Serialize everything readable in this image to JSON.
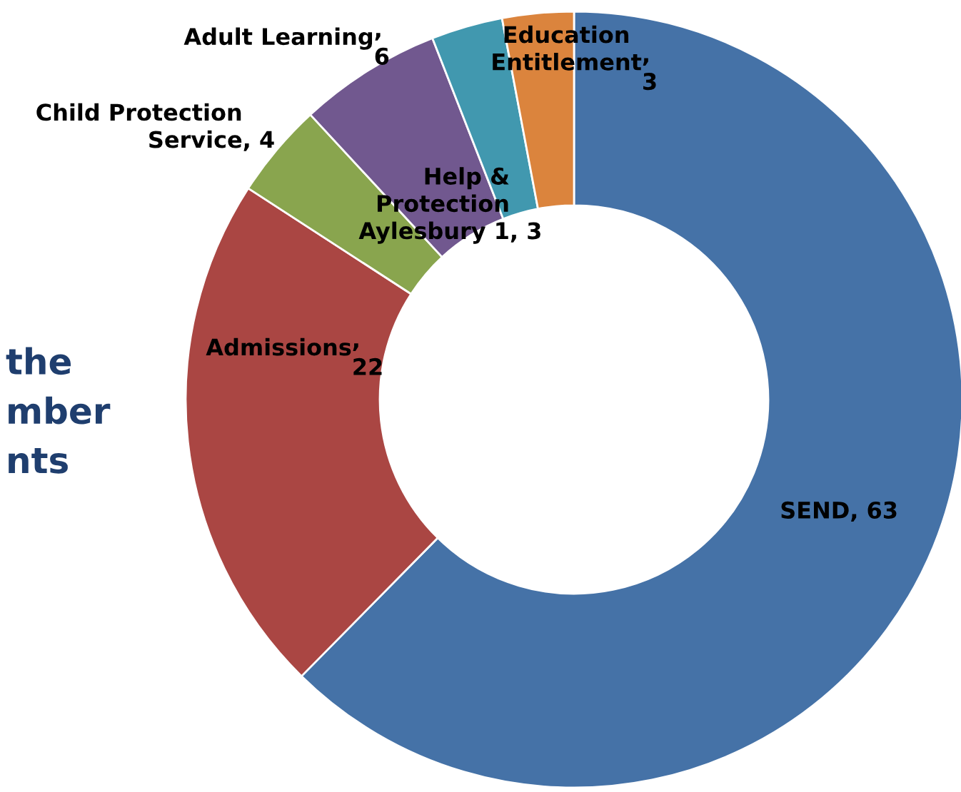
{
  "chart_data": {
    "type": "donut",
    "categories": [
      "SEND",
      "Admissions",
      "Child Protection\nService",
      "Adult Learning",
      "Help &\nProtection\nAylesbury 1",
      "Education\nEntitlement"
    ],
    "values": [
      63,
      22,
      4,
      6,
      3,
      3
    ],
    "colors": [
      "#4572a7",
      "#aa4643",
      "#89a54e",
      "#71588f",
      "#4198af",
      "#db843d"
    ],
    "value_labels": [
      ", 63",
      ",\n22",
      ", 4",
      ",\n6",
      ", 3",
      ",\n3"
    ],
    "annotations": [
      "the\nmber\nnts"
    ],
    "legend": false
  }
}
